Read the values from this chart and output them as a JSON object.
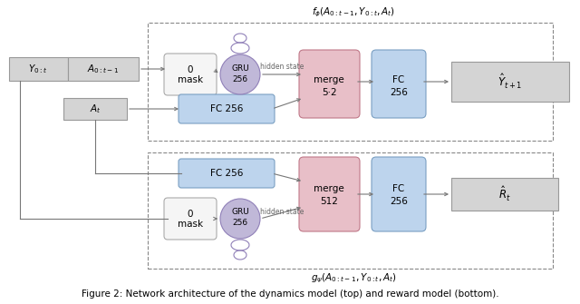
{
  "fig_width": 6.4,
  "fig_height": 3.35,
  "dpi": 100,
  "bg_color": "#ffffff",
  "gray_fc": "#d4d4d4",
  "gray_ec": "#999999",
  "white_fc": "#f5f5f5",
  "white_ec": "#aaaaaa",
  "blue_fc": "#bdd4ed",
  "blue_ec": "#7a9fc2",
  "pink_fc": "#e8bfc8",
  "pink_ec": "#c07888",
  "gru_fc": "#c0b8d8",
  "gru_ec": "#9080b8",
  "arrow_color": "#777777",
  "line_color": "#777777",
  "top_label": "$f_{\\phi}(A_{0:t-1}, Y_{0:t}, A_t)$",
  "bottom_label": "$g_{\\psi}(A_{0:t-1}, Y_{0:t}, A_t)$",
  "caption": "Figure 2: Network architecture of the dynamics model (top) and reward model (bottom).",
  "top_merge_text": [
    "merge",
    "5·2"
  ],
  "bot_merge_text": [
    "merge",
    "512"
  ]
}
